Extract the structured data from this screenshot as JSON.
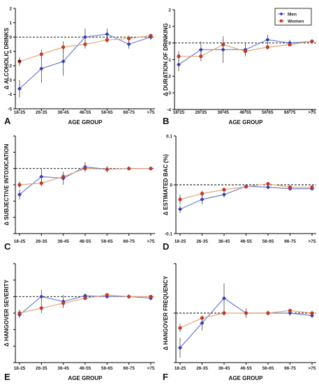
{
  "colors": {
    "men": "#3a3ab0",
    "women": "#c0392b",
    "men_line": "#6f7fd0",
    "women_line": "#e0a878",
    "axis": "#000000",
    "zero_line": "#000000"
  },
  "legend": {
    "men": "Men",
    "women": "Women"
  },
  "chart_data": [
    {
      "type": "line",
      "letter": "A",
      "xlabel": "AGE GROUP",
      "ylabel": "Δ ALCOHOLIC DRINKS",
      "categories": [
        "18-25",
        "26-35",
        "36-45",
        "46-55",
        "56-65",
        "66-75",
        ">75"
      ],
      "ylim": [
        -5,
        2
      ],
      "yticks": [
        -5,
        -4,
        -3,
        -2,
        -1,
        0,
        1,
        2
      ],
      "ytick_labels": [
        "-5",
        "-4",
        "-3",
        "-2",
        "-1",
        "0",
        "1",
        "2"
      ],
      "annotation": "*",
      "series": [
        {
          "name": "Men",
          "values": [
            -3.6,
            -2.2,
            -1.7,
            0.0,
            0.2,
            -0.5,
            0.0
          ],
          "err": [
            0.6,
            1.0,
            1.0,
            0.6,
            0.4,
            0.3,
            0.2
          ]
        },
        {
          "name": "Women",
          "values": [
            -1.7,
            -1.2,
            -0.7,
            -0.5,
            -0.2,
            -0.1,
            0.1
          ],
          "err": [
            0.3,
            0.3,
            0.4,
            0.3,
            0.2,
            0.2,
            0.1
          ]
        }
      ]
    },
    {
      "type": "line",
      "letter": "B",
      "xlabel": "AGE GROUP",
      "ylabel": "Δ DURATION OF DRINKING",
      "categories": [
        "18-25",
        "26-35",
        "36-45",
        "46-55",
        "56-65",
        "66-75",
        ">75"
      ],
      "ylim": [
        -4,
        2
      ],
      "yticks": [
        -4,
        -3,
        -2,
        -1,
        0,
        1,
        2
      ],
      "ytick_labels": [
        "-4",
        "-3",
        "-2",
        "-1",
        "0",
        "1",
        "2"
      ],
      "legend_position": "top-right",
      "series": [
        {
          "name": "Men",
          "values": [
            -1.3,
            -0.4,
            -0.4,
            -0.4,
            0.2,
            0.0,
            0.1
          ],
          "err": [
            0.4,
            0.5,
            0.8,
            0.4,
            0.3,
            0.2,
            0.1
          ]
        },
        {
          "name": "Women",
          "values": [
            -0.8,
            -0.8,
            -0.1,
            -0.5,
            -0.25,
            -0.1,
            0.1
          ],
          "err": [
            0.3,
            0.3,
            0.3,
            0.2,
            0.15,
            0.1,
            0.1
          ]
        }
      ]
    },
    {
      "type": "line",
      "letter": "C",
      "xlabel": "",
      "ylabel": "Δ SUBJECTIVE INTOXICATION",
      "categories": [
        "18-25",
        "26-35",
        "36-45",
        "46-55",
        "56-65",
        "66-75",
        ">75"
      ],
      "ylim": [
        -4,
        2
      ],
      "yticks": [
        -4,
        -3,
        -2,
        -1,
        0,
        1,
        2
      ],
      "ytick_labels": [
        "",
        "",
        "",
        "",
        "",
        "",
        ""
      ],
      "series": [
        {
          "name": "Men",
          "values": [
            -1.6,
            -0.5,
            -0.6,
            0.1,
            -0.05,
            0.0,
            0.0
          ],
          "err": [
            0.3,
            0.5,
            0.4,
            0.3,
            0.2,
            0.1,
            0.05
          ]
        },
        {
          "name": "Women",
          "values": [
            -1.0,
            -0.9,
            -0.5,
            0.0,
            -0.05,
            0.0,
            0.0
          ],
          "err": [
            0.2,
            0.2,
            0.2,
            0.1,
            0.1,
            0.05,
            0.05
          ]
        }
      ]
    },
    {
      "type": "line",
      "letter": "D",
      "xlabel": "",
      "ylabel": "Δ ESTIMATED BAC (%)",
      "categories": [
        "18-25",
        "26-35",
        "36-45",
        "46-55",
        "56-65",
        "66-75",
        ">75"
      ],
      "ylim": [
        -0.1,
        0.1
      ],
      "yticks": [
        -0.1,
        0,
        0.1
      ],
      "ytick_labels": [
        "-0.1",
        "0",
        "0.1"
      ],
      "series": [
        {
          "name": "Men",
          "values": [
            -0.05,
            -0.03,
            -0.02,
            -0.003,
            -0.005,
            -0.008,
            -0.008
          ],
          "err": [
            0.008,
            0.01,
            0.006,
            0.003,
            0.003,
            0.003,
            0.003
          ]
        },
        {
          "name": "Women",
          "values": [
            -0.03,
            -0.018,
            -0.01,
            -0.004,
            0.002,
            -0.005,
            -0.005
          ],
          "err": [
            0.01,
            0.006,
            0.004,
            0.003,
            0.003,
            0.002,
            0.002
          ]
        }
      ]
    },
    {
      "type": "line",
      "letter": "E",
      "xlabel": "AGE GROUP",
      "ylabel": "Δ HANGOVER SEVERITY",
      "categories": [
        "18-25",
        "26-35",
        "36-45",
        "46-55",
        "56-65",
        "66-75",
        ">75"
      ],
      "ylim": [
        -4,
        2
      ],
      "yticks": [
        -4,
        -3,
        -2,
        -1,
        0,
        1,
        2
      ],
      "ytick_labels": [
        "",
        "",
        "",
        "",
        "",
        "",
        ""
      ],
      "series": [
        {
          "name": "Men",
          "values": [
            -1.1,
            0.0,
            -0.3,
            0.05,
            0.0,
            0.0,
            -0.1
          ],
          "err": [
            0.2,
            0.4,
            0.4,
            0.15,
            0.1,
            0.05,
            0.1
          ]
        },
        {
          "name": "Women",
          "values": [
            -1.0,
            -0.7,
            -0.4,
            -0.1,
            0.1,
            0.0,
            0.0
          ],
          "err": [
            0.2,
            0.3,
            0.2,
            0.1,
            0.1,
            0.05,
            0.05
          ]
        }
      ]
    },
    {
      "type": "line",
      "letter": "F",
      "xlabel": "AGE GROUP",
      "ylabel": "Δ HANGOVER FREQUENCY",
      "categories": [
        "18-25",
        "26-35",
        "36-45",
        "46-55",
        "56-65",
        "66-75",
        ">75"
      ],
      "ylim": [
        -1,
        1
      ],
      "yticks": [
        -1,
        0,
        1
      ],
      "ytick_labels": [
        "",
        "",
        ""
      ],
      "series": [
        {
          "name": "Men",
          "values": [
            -0.7,
            -0.2,
            0.3,
            0.0,
            0.0,
            0.0,
            -0.05
          ],
          "err": [
            0.2,
            0.15,
            0.3,
            0.1,
            0.05,
            0.05,
            0.05
          ]
        },
        {
          "name": "Women",
          "values": [
            -0.3,
            -0.1,
            0.0,
            0.0,
            0.0,
            0.05,
            0.0
          ],
          "err": [
            0.08,
            0.05,
            0.05,
            0.04,
            0.03,
            0.03,
            0.03
          ]
        }
      ]
    }
  ]
}
